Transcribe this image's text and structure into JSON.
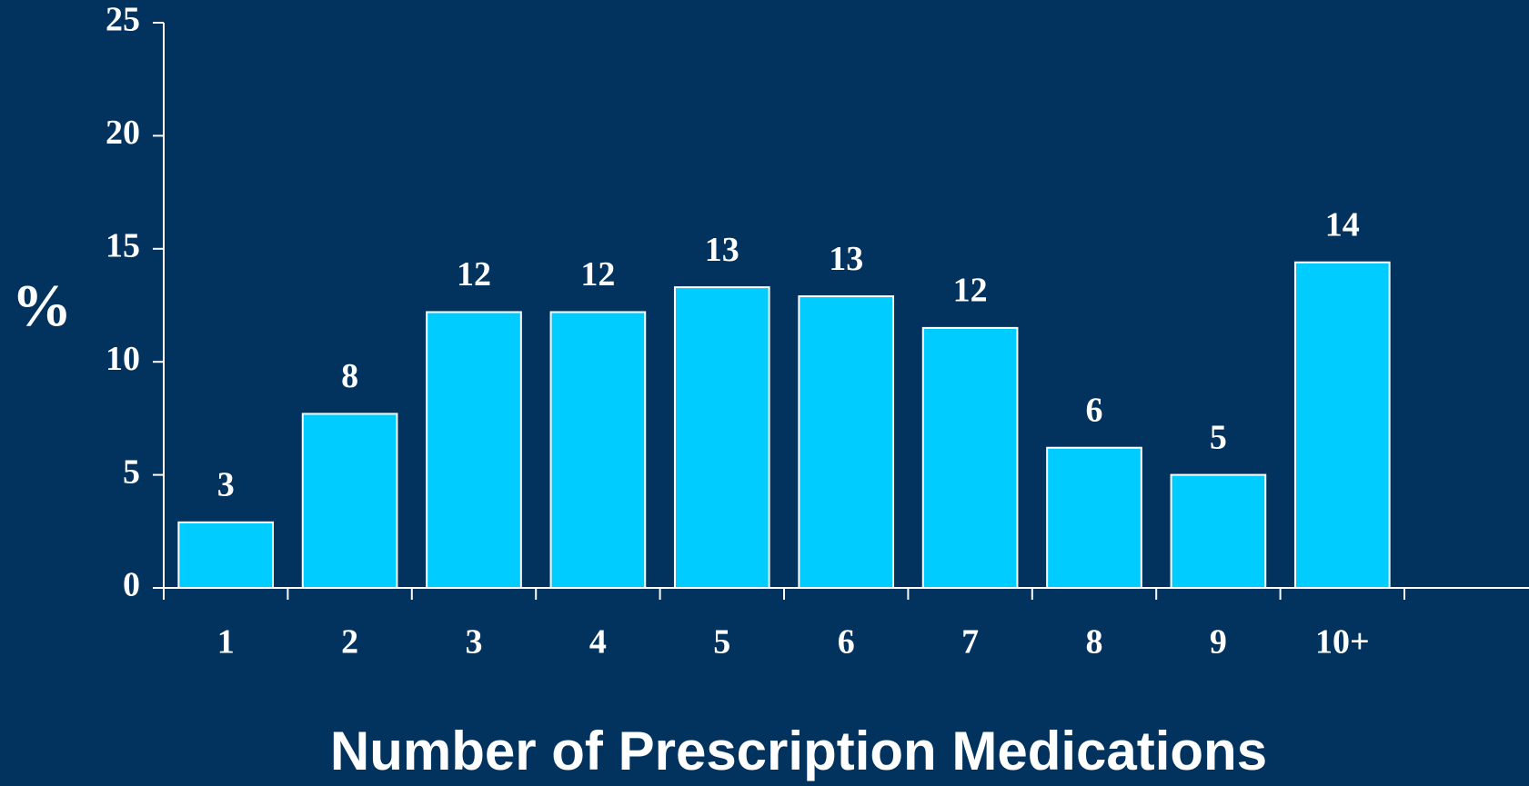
{
  "chart_data": {
    "type": "bar",
    "x_label": "Number of Prescription Medications",
    "y_label": "%",
    "categories": [
      "1",
      "2",
      "3",
      "4",
      "5",
      "6",
      "7",
      "8",
      "9",
      "10+"
    ],
    "values": [
      2.9,
      7.7,
      12.2,
      12.2,
      13.3,
      12.9,
      11.5,
      6.2,
      5.0,
      14.4
    ],
    "value_labels": [
      "3",
      "8",
      "12",
      "12",
      "13",
      "13",
      "12",
      "6",
      "5",
      "14"
    ],
    "color": "#00ccff",
    "ylim": [
      0,
      25
    ],
    "yticks": [
      0,
      5,
      10,
      15,
      20,
      25
    ]
  }
}
